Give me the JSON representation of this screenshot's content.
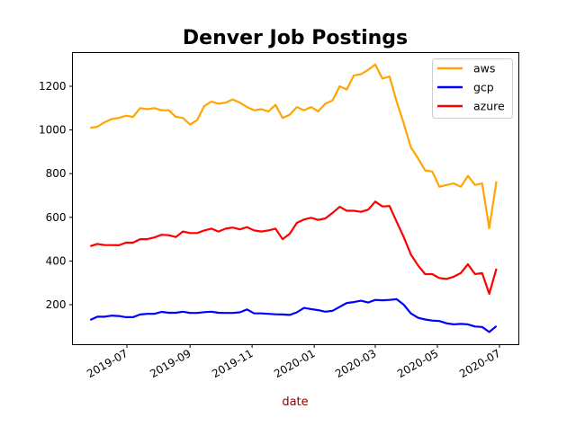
{
  "chart_data": {
    "type": "line",
    "title": "Denver Job Postings",
    "xlabel": "date",
    "ylabel": "",
    "ylim": [
      0,
      1350
    ],
    "xlim": [
      "2019-05-10",
      "2020-07-10"
    ],
    "yticks": [
      200,
      400,
      600,
      800,
      1000,
      1200
    ],
    "xticks": [
      "2019-07",
      "2019-09",
      "2019-11",
      "2020-01",
      "2020-03",
      "2020-05",
      "2020-07"
    ],
    "grid": false,
    "legend_position": "top-right",
    "x": [
      "2019-05-26",
      "2019-06-02",
      "2019-06-09",
      "2019-06-16",
      "2019-06-23",
      "2019-06-30",
      "2019-07-07",
      "2019-07-14",
      "2019-07-21",
      "2019-07-28",
      "2019-08-04",
      "2019-08-11",
      "2019-08-18",
      "2019-08-25",
      "2019-09-01",
      "2019-09-08",
      "2019-09-15",
      "2019-09-22",
      "2019-09-29",
      "2019-10-06",
      "2019-10-13",
      "2019-10-20",
      "2019-10-27",
      "2019-11-03",
      "2019-11-10",
      "2019-11-17",
      "2019-11-24",
      "2019-12-01",
      "2019-12-08",
      "2019-12-15",
      "2019-12-22",
      "2019-12-29",
      "2020-01-05",
      "2020-01-12",
      "2020-01-19",
      "2020-01-26",
      "2020-02-02",
      "2020-02-09",
      "2020-02-16",
      "2020-02-23",
      "2020-03-01",
      "2020-03-08",
      "2020-03-15",
      "2020-03-22",
      "2020-03-29",
      "2020-04-05",
      "2020-04-12",
      "2020-04-19",
      "2020-04-26",
      "2020-05-03",
      "2020-05-10",
      "2020-05-17",
      "2020-05-24",
      "2020-05-31",
      "2020-06-07",
      "2020-06-14",
      "2020-06-21",
      "2020-06-28"
    ],
    "series": [
      {
        "name": "aws",
        "color": "#FFA500",
        "values": [
          1010,
          1015,
          1035,
          1050,
          1055,
          1065,
          1060,
          1100,
          1095,
          1100,
          1090,
          1090,
          1060,
          1055,
          1025,
          1045,
          1110,
          1130,
          1120,
          1125,
          1140,
          1125,
          1105,
          1090,
          1095,
          1085,
          1115,
          1055,
          1070,
          1105,
          1090,
          1105,
          1085,
          1120,
          1135,
          1200,
          1185,
          1250,
          1255,
          1275,
          1300,
          1235,
          1245,
          1130,
          1030,
          920,
          870,
          815,
          810,
          740,
          748,
          755,
          740,
          790,
          748,
          755,
          550,
          765
        ]
      },
      {
        "name": "gcp",
        "color": "#0000FF",
        "values": [
          130,
          145,
          145,
          150,
          148,
          143,
          143,
          155,
          158,
          158,
          167,
          163,
          163,
          168,
          162,
          162,
          166,
          168,
          163,
          162,
          162,
          165,
          178,
          160,
          160,
          158,
          156,
          155,
          153,
          165,
          185,
          180,
          175,
          168,
          172,
          190,
          208,
          212,
          218,
          210,
          222,
          220,
          222,
          225,
          200,
          160,
          140,
          132,
          127,
          125,
          115,
          110,
          112,
          110,
          100,
          98,
          75,
          102
        ]
      },
      {
        "name": "azure",
        "color": "#FF0000",
        "values": [
          468,
          478,
          473,
          473,
          472,
          484,
          484,
          500,
          500,
          508,
          520,
          518,
          510,
          535,
          528,
          528,
          540,
          548,
          535,
          548,
          553,
          545,
          555,
          540,
          535,
          540,
          548,
          500,
          525,
          575,
          590,
          598,
          588,
          595,
          620,
          648,
          630,
          630,
          625,
          635,
          672,
          650,
          652,
          580,
          510,
          430,
          380,
          340,
          340,
          322,
          318,
          328,
          345,
          385,
          340,
          345,
          250,
          365
        ]
      }
    ]
  }
}
